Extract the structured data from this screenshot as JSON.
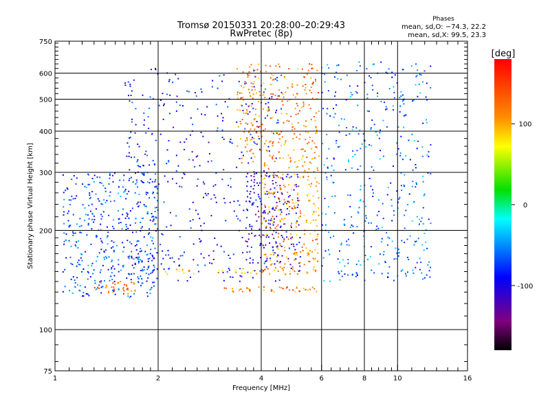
{
  "chart_data": {
    "type": "scatter",
    "title": "Tromsø 20150331 20:28:00–20:29:43",
    "subtitle": "RwPretec (8p)",
    "xlabel": "Frequency [MHz]",
    "ylabel": "Stationary phase Virtual Height [km]",
    "xscale": "log",
    "yscale": "log",
    "xlim": [
      1,
      16
    ],
    "ylim": [
      75,
      750
    ],
    "x_ticks": [
      1,
      2,
      4,
      6,
      8,
      10,
      16
    ],
    "x_tick_labels": [
      "1",
      "2",
      "4",
      "6",
      "8",
      "10",
      "16"
    ],
    "x_minor_ticks": [
      1.1,
      1.2,
      1.3,
      1.4,
      1.5,
      1.6,
      1.7,
      1.8,
      1.9,
      2.2,
      2.4,
      2.6,
      2.8,
      3,
      3.2,
      3.4,
      3.6,
      3.8,
      4.4,
      4.8,
      5.2,
      5.6,
      6.4,
      6.8,
      7.2,
      7.6,
      8.4,
      8.8,
      9.2,
      9.6,
      11,
      12,
      13,
      14,
      15
    ],
    "y_ticks": [
      75,
      100,
      200,
      300,
      400,
      500,
      600,
      750
    ],
    "y_tick_labels": [
      "75",
      "100",
      "200",
      "300",
      "400",
      "500",
      "600",
      "750"
    ],
    "y_minor_ticks": [
      80,
      90,
      110,
      120,
      130,
      140,
      150,
      160,
      170,
      180,
      190,
      220,
      240,
      260,
      280,
      320,
      340,
      360,
      380,
      420,
      440,
      460,
      480,
      520,
      540,
      560,
      580,
      620,
      640,
      660,
      680,
      700,
      720,
      740
    ],
    "grid": true,
    "point_color_by": "phase",
    "echo_clusters": [
      {
        "name": "E-layer trace (orange)",
        "x_range": [
          1.3,
          1.75
        ],
        "y_range": [
          128,
          140
        ],
        "phase": 130
      },
      {
        "name": "low-frequency diffuse echoes",
        "x_range": [
          1.05,
          2.0
        ],
        "y_range": [
          125,
          300
        ],
        "phase": -70
      },
      {
        "name": "F-region spread echoes",
        "x_range": [
          1.6,
          4.6
        ],
        "y_range": [
          140,
          620
        ],
        "phase": -90
      },
      {
        "name": "F trace near 150 km",
        "x_range": [
          2.1,
          5.8
        ],
        "y_range": [
          147,
          153
        ],
        "phase": 100
      },
      {
        "name": "F trace near 132 km",
        "x_range": [
          3.0,
          5.8
        ],
        "y_range": [
          130,
          135
        ],
        "phase": 120
      },
      {
        "name": "curved F trace",
        "x_range": [
          3.6,
          5.2
        ],
        "y_range": [
          150,
          300
        ],
        "phase": -110
      },
      {
        "name": "yellow F2 trace",
        "x_range": [
          4.0,
          5.9
        ],
        "y_range": [
          150,
          320
        ],
        "phase": 110
      },
      {
        "name": "upper yellow echoes",
        "x_range": [
          3.4,
          5.9
        ],
        "y_range": [
          320,
          640
        ],
        "phase": 120
      },
      {
        "name": "scattered high-frequency echoes",
        "x_range": [
          6.0,
          12.5
        ],
        "y_range": [
          140,
          650
        ],
        "phase": -60
      }
    ],
    "phase_stats": {
      "title": "Phases",
      "line_O": "mean, sd,O: −74.3, 22.2",
      "line_X": "mean, sd,X:  99.5, 23.3"
    },
    "colorbar": {
      "label": "[deg]",
      "range": [
        -180,
        180
      ],
      "ticks": [
        100,
        0,
        -100
      ],
      "tick_labels": [
        "100",
        "0",
        "-100"
      ],
      "stops": [
        {
          "offset": 0.0,
          "color": "#ff0000"
        },
        {
          "offset": 0.2,
          "color": "#ff8c00"
        },
        {
          "offset": 0.3,
          "color": "#ffff00"
        },
        {
          "offset": 0.45,
          "color": "#00e000"
        },
        {
          "offset": 0.55,
          "color": "#00ffff"
        },
        {
          "offset": 0.75,
          "color": "#0000ff"
        },
        {
          "offset": 0.9,
          "color": "#800080"
        },
        {
          "offset": 1.0,
          "color": "#000000"
        }
      ]
    }
  }
}
